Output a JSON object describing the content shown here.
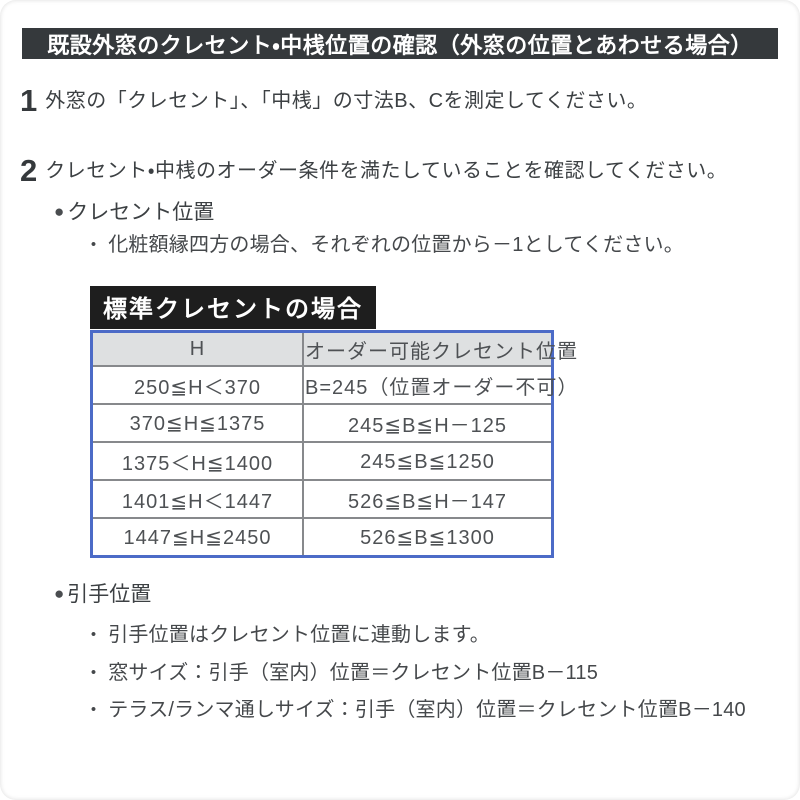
{
  "glyphs": {
    "section_bullet": "●",
    "note_bullet": "・"
  },
  "header": {
    "title": "既設外窓のクレセント・中桟位置の確認（外窓の位置とあわせる場合）"
  },
  "steps": [
    {
      "number": "1",
      "text": "外窓の「クレセント」、「中桟」の寸法B、Cを測定してください。"
    },
    {
      "number": "2",
      "text": "クレセント・中桟のオーダー条件を満たしていることを確認してください。"
    }
  ],
  "crescent_section": {
    "heading": "クレセント位置",
    "notes": [
      "化粧額縁四方の場合、それぞれの位置から－1としてください。"
    ],
    "table_title": "標準クレセントの場合",
    "table": {
      "headers": [
        "H",
        "オーダー可能クレセント位置"
      ],
      "rows": [
        [
          "250≦H＜370",
          "B=245（位置オーダー不可）"
        ],
        [
          "370≦H≦1375",
          "245≦B≦H－125"
        ],
        [
          "1375＜H≦1400",
          "245≦B≦1250"
        ],
        [
          "1401≦H＜1447",
          "526≦B≦H－147"
        ],
        [
          "1447≦H≦2450",
          "526≦B≦1300"
        ]
      ]
    }
  },
  "handle_section": {
    "heading": "引手位置",
    "notes": [
      "引手位置はクレセント位置に連動します。",
      "窓サイズ：引手（室内）位置＝クレセント位置B－115",
      "テラス/ランマ通しサイズ：引手（室内）位置＝クレセント位置B－140"
    ]
  },
  "colors": {
    "title_bar_bg": "#35393c",
    "table_title_bg": "#1e1e1e",
    "table_border": "#4c6bc7",
    "table_header_bg": "#dee0e1",
    "table_text": "#4e5154",
    "body_text": "#3c4043"
  }
}
